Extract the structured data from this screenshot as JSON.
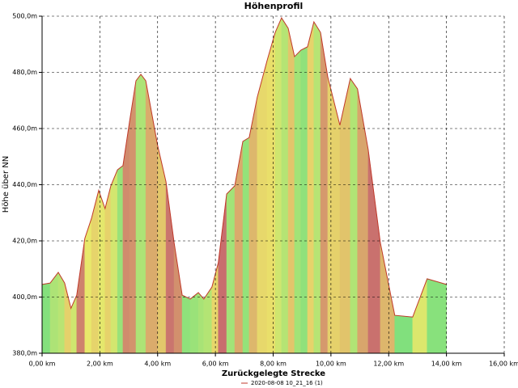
{
  "chart_data": {
    "type": "area",
    "title": "Höhenprofil",
    "x_label": "Zurückgelegte Strecke",
    "y_label": "Höhe über NN",
    "x": [
      0,
      0.28,
      0.56,
      0.78,
      1.0,
      1.2,
      1.48,
      1.71,
      1.96,
      2.18,
      2.38,
      2.61,
      2.8,
      3.03,
      3.25,
      3.42,
      3.59,
      4.0,
      4.29,
      4.57,
      4.85,
      5.13,
      5.41,
      5.6,
      5.88,
      6.1,
      6.39,
      6.67,
      6.95,
      7.17,
      7.45,
      7.79,
      8.07,
      8.29,
      8.52,
      8.74,
      8.96,
      9.19,
      9.41,
      9.64,
      9.89,
      10.31,
      10.67,
      10.92,
      11.29,
      11.71,
      12.21,
      12.83,
      13.33,
      14.0
    ],
    "series": [
      {
        "name": "2020-08-08 10_21_16 (1)",
        "color": "#c0392b",
        "values": [
          404.5,
          405,
          408.8,
          405,
          396,
          400.7,
          420.9,
          428,
          438,
          431.5,
          439.6,
          445.3,
          446.8,
          462.6,
          477,
          479.3,
          477,
          454,
          441,
          419.4,
          400.7,
          399.3,
          401.6,
          399.3,
          403.6,
          412.2,
          436.7,
          439.6,
          455.4,
          456.8,
          471.2,
          484.2,
          494.2,
          499.4,
          495.7,
          485.6,
          487.9,
          489.1,
          498,
          494.2,
          478.4,
          461.2,
          477.8,
          474.1,
          452.5,
          419.4,
          393.5,
          392.9,
          406.5,
          404.5
        ]
      }
    ],
    "xlim": [
      0,
      16
    ],
    "ylim": [
      380,
      500
    ],
    "xticks": [
      {
        "value": 0,
        "label": "0,00 km"
      },
      {
        "value": 2,
        "label": "2,00 km"
      },
      {
        "value": 4,
        "label": "4,00 km"
      },
      {
        "value": 6,
        "label": "6,00 km"
      },
      {
        "value": 8,
        "label": "8,00 km"
      },
      {
        "value": 10,
        "label": "10,00 km"
      },
      {
        "value": 12,
        "label": "12,00 km"
      },
      {
        "value": 14,
        "label": "14,00 km"
      },
      {
        "value": 16,
        "label": "16,00 km"
      }
    ],
    "yticks": [
      {
        "value": 380,
        "label": "380,0m"
      },
      {
        "value": 400,
        "label": "400,0m"
      },
      {
        "value": 420,
        "label": "420,0m"
      },
      {
        "value": 440,
        "label": "440,0m"
      },
      {
        "value": 460,
        "label": "460,0m"
      },
      {
        "value": 480,
        "label": "480,0m"
      },
      {
        "value": 500,
        "label": "500,0m"
      }
    ],
    "grid": true
  }
}
